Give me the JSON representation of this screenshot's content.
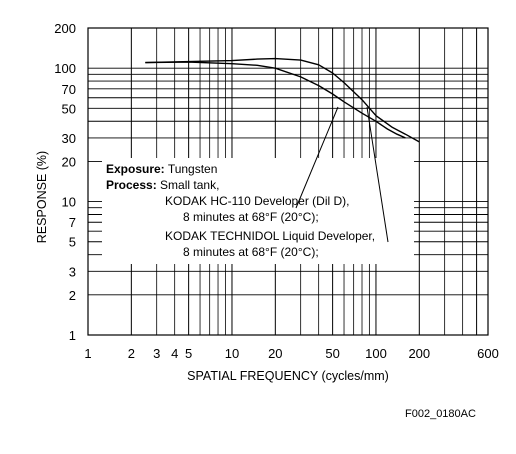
{
  "chart_data": {
    "type": "line",
    "x_scale": "log",
    "y_scale": "log",
    "xlim": [
      1,
      600
    ],
    "ylim": [
      1,
      200
    ],
    "xlabel": "SPATIAL FREQUENCY (cycles/mm)",
    "ylabel": "RESPONSE (%)",
    "x_ticks": [
      {
        "value": 1,
        "label": "1"
      },
      {
        "value": 2,
        "label": "2"
      },
      {
        "value": 3,
        "label": "3"
      },
      {
        "value": 4,
        "label": "4"
      },
      {
        "value": 5,
        "label": "5"
      },
      {
        "value": 10,
        "label": "10"
      },
      {
        "value": 20,
        "label": "20"
      },
      {
        "value": 50,
        "label": "50"
      },
      {
        "value": 100,
        "label": "100"
      },
      {
        "value": 200,
        "label": "200"
      },
      {
        "value": 600,
        "label": "600"
      }
    ],
    "y_ticks": [
      {
        "value": 1,
        "label": "1"
      },
      {
        "value": 2,
        "label": "2"
      },
      {
        "value": 3,
        "label": "3"
      },
      {
        "value": 5,
        "label": "5"
      },
      {
        "value": 7,
        "label": "7"
      },
      {
        "value": 10,
        "label": "10"
      },
      {
        "value": 20,
        "label": "20"
      },
      {
        "value": 30,
        "label": "30"
      },
      {
        "value": 50,
        "label": "50"
      },
      {
        "value": 70,
        "label": "70"
      },
      {
        "value": 100,
        "label": "100"
      },
      {
        "value": 200,
        "label": "200"
      }
    ],
    "grid": true,
    "series": [
      {
        "x": [
          2.5,
          5,
          10,
          15,
          20,
          30,
          40,
          50,
          60,
          80,
          100,
          130,
          160,
          200
        ],
        "y": [
          110,
          112,
          114,
          117,
          118,
          115,
          106,
          92,
          78,
          58,
          44,
          36,
          32,
          28
        ]
      },
      {
        "x": [
          2.5,
          5,
          10,
          15,
          20,
          30,
          40,
          50,
          60,
          80,
          100,
          120,
          140,
          160
        ],
        "y": [
          110,
          111,
          108,
          105,
          100,
          86,
          74,
          64,
          56,
          46,
          40,
          35,
          32,
          30
        ]
      }
    ],
    "annotation": {
      "exposure_label": "Exposure:",
      "exposure_value": "Tungsten",
      "process_label": "Process:",
      "process_value": "Small tank,",
      "line1": "KODAK HC-110 Developer (Dil D),",
      "line2": "8 minutes at 68°F (20°C);",
      "line3": "KODAK TECHNIDOL Liquid Developer,",
      "line4": "8 minutes at 68°F (20°C);"
    },
    "figure_id": "F002_0180AC"
  }
}
